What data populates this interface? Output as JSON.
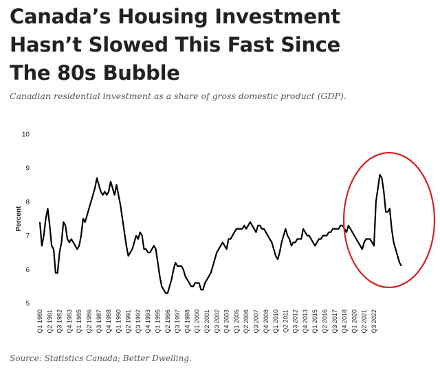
{
  "header": {
    "title_lines": [
      "Canada’s Housing Investment",
      "Hasn’t Slowed This Fast Since",
      "The 80s Bubble"
    ],
    "subtitle": "Canadian residential investment as a share of gross domestic product (GDP)."
  },
  "footer": {
    "source": "Source: Statistics Canada; Better Dwelling."
  },
  "colors": {
    "line": "#000000",
    "highlight_circle": "#d62020",
    "title": "#222222",
    "subtitle": "#555555"
  },
  "chart_data": {
    "type": "line",
    "title": "",
    "xlabel": "",
    "ylabel": "Percent",
    "ylim": [
      5,
      10
    ],
    "yticks": [
      5,
      6,
      7,
      8,
      9,
      10
    ],
    "grid": false,
    "legend": "none",
    "x_tick_labels": [
      "Q1 1980",
      "Q2 1981",
      "Q3 1982",
      "Q4 1983",
      "Q1 1985",
      "Q2 1986",
      "Q3 1987",
      "Q4 1988",
      "Q1 1990",
      "Q2 1991",
      "Q3 1992",
      "Q4 1993",
      "Q1 1995",
      "Q2 1996",
      "Q3 1997",
      "Q4 1998",
      "Q1 2000",
      "Q2 2001",
      "Q3 2002",
      "Q4 2003",
      "Q1 2005",
      "Q2 2006",
      "Q3 2007",
      "Q4 2008",
      "Q1 2010",
      "Q2 2011",
      "Q3 2012",
      "Q4 2013",
      "Q1 2015",
      "Q2 2016",
      "Q3 2017",
      "Q4 2018",
      "Q1 2020",
      "Q2 2021",
      "Q3 2022"
    ],
    "x_start": "Q1 1980",
    "frequency": "quarterly",
    "annotation": "red circle around 2020–2022",
    "series": [
      {
        "values": [
          7.4,
          6.7,
          7.0,
          7.5,
          7.8,
          7.3,
          6.7,
          6.6,
          5.9,
          5.9,
          6.5,
          6.8,
          7.4,
          7.3,
          6.9,
          6.8,
          6.9,
          6.8,
          6.7,
          6.6,
          6.7,
          7.0,
          7.5,
          7.4,
          7.6,
          7.8,
          8.0,
          8.2,
          8.4,
          8.7,
          8.5,
          8.3,
          8.2,
          8.3,
          8.2,
          8.3,
          8.6,
          8.4,
          8.2,
          8.5,
          8.2,
          7.9,
          7.5,
          7.1,
          6.7,
          6.4,
          6.5,
          6.6,
          6.8,
          7.0,
          6.9,
          7.1,
          7.0,
          6.6,
          6.6,
          6.5,
          6.5,
          6.6,
          6.7,
          6.6,
          6.2,
          5.8,
          5.5,
          5.4,
          5.3,
          5.3,
          5.5,
          5.7,
          6.0,
          6.2,
          6.1,
          6.1,
          6.1,
          6.0,
          5.8,
          5.7,
          5.6,
          5.5,
          5.5,
          5.6,
          5.6,
          5.6,
          5.4,
          5.4,
          5.6,
          5.7,
          5.8,
          5.9,
          6.1,
          6.3,
          6.5,
          6.6,
          6.7,
          6.8,
          6.7,
          6.6,
          6.9,
          6.9,
          7.0,
          7.1,
          7.2,
          7.2,
          7.2,
          7.2,
          7.3,
          7.2,
          7.3,
          7.4,
          7.3,
          7.2,
          7.1,
          7.3,
          7.3,
          7.2,
          7.2,
          7.1,
          7.0,
          6.9,
          6.8,
          6.6,
          6.4,
          6.3,
          6.5,
          6.8,
          7.0,
          7.2,
          7.0,
          6.9,
          6.7,
          6.8,
          6.8,
          6.9,
          6.9,
          6.9,
          7.2,
          7.1,
          7.0,
          7.0,
          6.9,
          6.8,
          6.7,
          6.8,
          6.9,
          6.9,
          7.0,
          7.0,
          7.0,
          7.1,
          7.1,
          7.2,
          7.2,
          7.2,
          7.2,
          7.3,
          7.3,
          7.2,
          7.1,
          7.3,
          7.2,
          7.1,
          7.0,
          6.9,
          6.8,
          6.7,
          6.6,
          6.8,
          6.9,
          6.9,
          6.9,
          6.8,
          6.7,
          8.0,
          8.4,
          8.8,
          8.7,
          8.3,
          7.7,
          7.7,
          7.8,
          7.2,
          6.8,
          6.6,
          6.4,
          6.2,
          6.1
        ]
      }
    ]
  }
}
